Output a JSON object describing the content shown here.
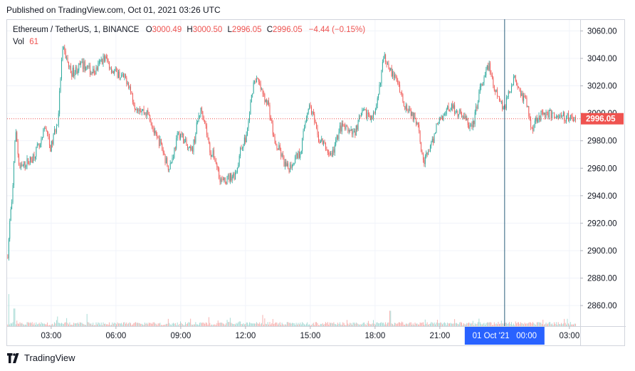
{
  "header": {
    "published": "Published on TradingView.com, Oct 01, 2021 03:26 UTC"
  },
  "legend": {
    "symbol": "Ethereum / TetherUS, 1, BINANCE",
    "o_label": "O",
    "o_value": "3000.49",
    "h_label": "H",
    "h_value": "3000.50",
    "l_label": "L",
    "l_value": "2996.05",
    "c_label": "C",
    "c_value": "2996.05",
    "change": "−4.44 (−0.15%)",
    "vol_label": "Vol",
    "vol_value": "61"
  },
  "footer": {
    "brand": "TradingView",
    "logo_icon": "tradingview-logo-icon"
  },
  "chart_data": {
    "type": "candlestick",
    "symbol": "Ethereum / TetherUS",
    "exchange": "BINANCE",
    "interval": "1",
    "y_ticks": [
      2860,
      2880,
      2900,
      2920,
      2940,
      2960,
      2980,
      3000,
      3020,
      3040,
      3060
    ],
    "y_tick_labels": [
      "2860.00",
      "2880.00",
      "2900.00",
      "2920.00",
      "2940.00",
      "2960.00",
      "2980.00",
      "3000.00",
      "3020.00",
      "3040.00",
      "3060.00"
    ],
    "ylim": [
      2845,
      3068
    ],
    "x_ticks": [
      3,
      6,
      9,
      12,
      15,
      18,
      21,
      27
    ],
    "x_tick_labels": [
      "03:00",
      "06:00",
      "09:00",
      "12:00",
      "15:00",
      "18:00",
      "21:00",
      "03:00"
    ],
    "xlim": [
      0.96,
      27.5
    ],
    "price_path": [
      [
        1.0,
        2895
      ],
      [
        1.2,
        2930
      ],
      [
        1.4,
        2985
      ],
      [
        1.6,
        2960
      ],
      [
        2.0,
        2965
      ],
      [
        2.5,
        2975
      ],
      [
        2.8,
        2990
      ],
      [
        3.0,
        2975
      ],
      [
        3.3,
        2990
      ],
      [
        3.6,
        3045
      ],
      [
        4.0,
        3030
      ],
      [
        4.5,
        3035
      ],
      [
        5.0,
        3030
      ],
      [
        5.5,
        3040
      ],
      [
        6.0,
        3030
      ],
      [
        6.5,
        3025
      ],
      [
        7.0,
        3005
      ],
      [
        7.5,
        3000
      ],
      [
        8.0,
        2980
      ],
      [
        8.5,
        2962
      ],
      [
        9.0,
        2985
      ],
      [
        9.5,
        2972
      ],
      [
        10.0,
        3002
      ],
      [
        10.5,
        2970
      ],
      [
        11.0,
        2950
      ],
      [
        11.5,
        2955
      ],
      [
        12.0,
        2980
      ],
      [
        12.5,
        3025
      ],
      [
        13.0,
        3010
      ],
      [
        13.5,
        2975
      ],
      [
        14.0,
        2960
      ],
      [
        14.5,
        2970
      ],
      [
        15.0,
        3005
      ],
      [
        15.5,
        2980
      ],
      [
        16.0,
        2970
      ],
      [
        16.5,
        2990
      ],
      [
        17.0,
        2985
      ],
      [
        17.5,
        3000
      ],
      [
        18.0,
        2998
      ],
      [
        18.5,
        3040
      ],
      [
        19.0,
        3025
      ],
      [
        19.5,
        3005
      ],
      [
        20.0,
        2995
      ],
      [
        20.3,
        2965
      ],
      [
        20.6,
        2975
      ],
      [
        21.0,
        2995
      ],
      [
        21.5,
        3005
      ],
      [
        22.0,
        3000
      ],
      [
        22.5,
        2990
      ],
      [
        23.0,
        3020
      ],
      [
        23.3,
        3035
      ],
      [
        23.6,
        3015
      ],
      [
        24.0,
        3005
      ],
      [
        24.5,
        3025
      ],
      [
        25.0,
        3010
      ],
      [
        25.3,
        2990
      ],
      [
        25.6,
        2998
      ],
      [
        26.0,
        3000
      ],
      [
        26.5,
        2998
      ],
      [
        27.3,
        2996
      ]
    ],
    "last_price": 2996.05,
    "last_price_label": "2996.05",
    "crosshair": {
      "time": 24.0,
      "label": "01 Oct '21   00:00"
    },
    "volume": {
      "spikes": [
        [
          1.05,
          100
        ],
        [
          1.3,
          55
        ],
        [
          3.3,
          30
        ],
        [
          3.7,
          25
        ],
        [
          4.65,
          38
        ],
        [
          10.3,
          28
        ],
        [
          11.3,
          26
        ],
        [
          12.8,
          35
        ],
        [
          18.7,
          48
        ],
        [
          20.9,
          20
        ],
        [
          21.7,
          22
        ]
      ]
    },
    "colors": {
      "up": "#26a69a",
      "down": "#ef5350",
      "up_vol": "#9fd7d1",
      "down_vol": "#f5a9a7",
      "crosshair": "#2962ff",
      "grid": "#f0f3fa"
    }
  }
}
